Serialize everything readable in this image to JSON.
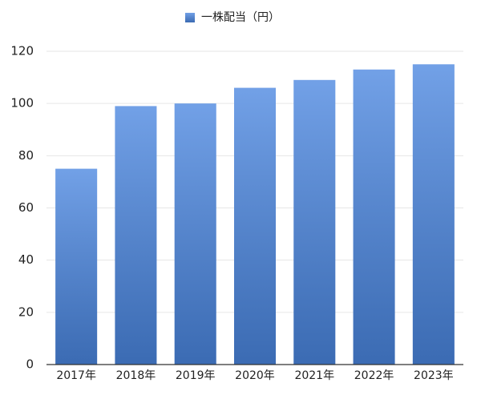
{
  "chart_data": {
    "type": "bar",
    "legend": "一株配当（円）",
    "categories": [
      "2017年",
      "2018年",
      "2019年",
      "2020年",
      "2021年",
      "2022年",
      "2023年"
    ],
    "values": [
      75,
      99,
      100,
      106,
      109,
      113,
      115
    ],
    "color": "#4a86e0",
    "ylim": [
      0,
      120
    ],
    "yticks": [
      0,
      20,
      40,
      60,
      80,
      100,
      120
    ],
    "grid": true,
    "legend_position": "top"
  }
}
